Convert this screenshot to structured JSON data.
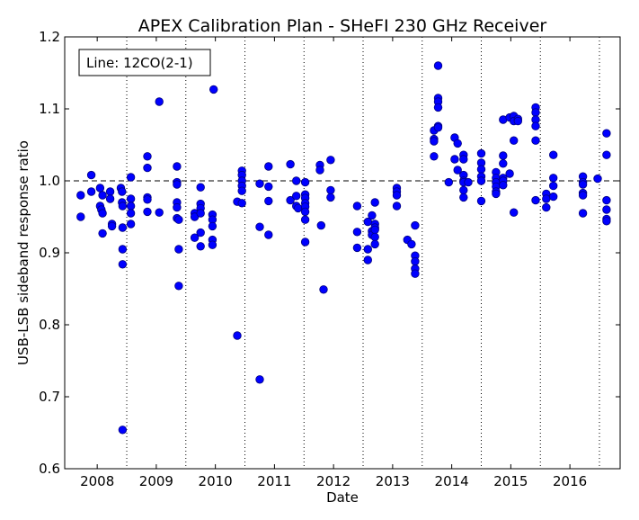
{
  "chart_data": {
    "type": "scatter",
    "title": "APEX Calibration Plan - SHeFI 230 GHz Receiver",
    "xlabel": "Date",
    "ylabel": "USB-LSB sideband response ratio",
    "legend": {
      "text": "Line: 12CO(2-1)",
      "placement": "top-left"
    },
    "xlim": [
      2007.45,
      2016.85
    ],
    "ylim": [
      0.6,
      1.2
    ],
    "x_ticks": [
      2008,
      2009,
      2010,
      2011,
      2012,
      2013,
      2014,
      2015,
      2016
    ],
    "x_tick_labels": [
      "2008",
      "2009",
      "2010",
      "2011",
      "2012",
      "2013",
      "2014",
      "2015",
      "2016"
    ],
    "y_ticks": [
      0.6,
      0.7,
      0.8,
      0.9,
      1.0,
      1.1,
      1.2
    ],
    "y_tick_labels": [
      "0.6",
      "0.7",
      "0.8",
      "0.9",
      "1.0",
      "1.1",
      "1.2"
    ],
    "reference_line": 1.0,
    "vertical_gridlines": [
      2008.5,
      2009.5,
      2010.5,
      2011.5,
      2012.5,
      2013.5,
      2014.5,
      2015.5,
      2016.5
    ],
    "marker_color": "#0000ff",
    "marker_edge_color": "#000080",
    "points": [
      [
        2007.72,
        0.98
      ],
      [
        2007.72,
        0.95
      ],
      [
        2007.9,
        1.008
      ],
      [
        2007.9,
        0.985
      ],
      [
        2008.05,
        0.99
      ],
      [
        2008.05,
        0.965
      ],
      [
        2008.07,
        0.96
      ],
      [
        2008.09,
        0.955
      ],
      [
        2008.09,
        0.927
      ],
      [
        2008.09,
        0.98
      ],
      [
        2008.22,
        0.985
      ],
      [
        2008.22,
        0.975
      ],
      [
        2008.25,
        0.94
      ],
      [
        2008.25,
        0.937
      ],
      [
        2008.4,
        0.99
      ],
      [
        2008.42,
        0.985
      ],
      [
        2008.42,
        0.97
      ],
      [
        2008.43,
        0.965
      ],
      [
        2008.43,
        0.935
      ],
      [
        2008.43,
        0.905
      ],
      [
        2008.43,
        0.884
      ],
      [
        2008.43,
        0.654
      ],
      [
        2008.57,
        1.005
      ],
      [
        2008.57,
        0.975
      ],
      [
        2008.57,
        0.965
      ],
      [
        2008.57,
        0.955
      ],
      [
        2008.57,
        0.94
      ],
      [
        2008.85,
        1.034
      ],
      [
        2008.85,
        1.018
      ],
      [
        2008.85,
        0.977
      ],
      [
        2008.85,
        0.974
      ],
      [
        2008.85,
        0.957
      ],
      [
        2009.05,
        1.11
      ],
      [
        2009.05,
        0.956
      ],
      [
        2009.35,
        1.02
      ],
      [
        2009.35,
        0.998
      ],
      [
        2009.35,
        0.995
      ],
      [
        2009.35,
        0.97
      ],
      [
        2009.35,
        0.963
      ],
      [
        2009.35,
        0.948
      ],
      [
        2009.38,
        0.946
      ],
      [
        2009.38,
        0.905
      ],
      [
        2009.38,
        0.854
      ],
      [
        2009.65,
        0.955
      ],
      [
        2009.65,
        0.95
      ],
      [
        2009.65,
        0.921
      ],
      [
        2009.75,
        0.991
      ],
      [
        2009.75,
        0.968
      ],
      [
        2009.75,
        0.962
      ],
      [
        2009.75,
        0.955
      ],
      [
        2009.75,
        0.928
      ],
      [
        2009.75,
        0.909
      ],
      [
        2009.97,
        1.127
      ],
      [
        2009.95,
        0.953
      ],
      [
        2009.95,
        0.946
      ],
      [
        2009.95,
        0.937
      ],
      [
        2009.95,
        0.918
      ],
      [
        2009.95,
        0.911
      ],
      [
        2010.37,
        0.971
      ],
      [
        2010.37,
        0.785
      ],
      [
        2010.45,
        1.014
      ],
      [
        2010.45,
        1.008
      ],
      [
        2010.45,
        1.0
      ],
      [
        2010.45,
        0.993
      ],
      [
        2010.45,
        0.986
      ],
      [
        2010.45,
        0.969
      ],
      [
        2010.75,
        0.996
      ],
      [
        2010.75,
        0.936
      ],
      [
        2010.75,
        0.724
      ],
      [
        2010.9,
        1.02
      ],
      [
        2010.9,
        0.992
      ],
      [
        2010.9,
        0.972
      ],
      [
        2010.9,
        0.925
      ],
      [
        2011.27,
        1.023
      ],
      [
        2011.27,
        0.973
      ],
      [
        2011.37,
        1.0
      ],
      [
        2011.37,
        0.979
      ],
      [
        2011.37,
        0.965
      ],
      [
        2011.4,
        0.962
      ],
      [
        2011.52,
        0.998
      ],
      [
        2011.52,
        0.981
      ],
      [
        2011.52,
        0.976
      ],
      [
        2011.52,
        0.969
      ],
      [
        2011.52,
        0.964
      ],
      [
        2011.52,
        0.957
      ],
      [
        2011.52,
        0.946
      ],
      [
        2011.52,
        0.915
      ],
      [
        2011.77,
        1.022
      ],
      [
        2011.77,
        1.015
      ],
      [
        2011.79,
        0.938
      ],
      [
        2011.83,
        0.849
      ],
      [
        2011.95,
        1.029
      ],
      [
        2011.95,
        0.987
      ],
      [
        2011.95,
        0.977
      ],
      [
        2012.4,
        0.965
      ],
      [
        2012.4,
        0.929
      ],
      [
        2012.4,
        0.907
      ],
      [
        2012.58,
        0.943
      ],
      [
        2012.58,
        0.905
      ],
      [
        2012.58,
        0.89
      ],
      [
        2012.65,
        0.952
      ],
      [
        2012.65,
        0.93
      ],
      [
        2012.65,
        0.925
      ],
      [
        2012.7,
        0.97
      ],
      [
        2012.7,
        0.94
      ],
      [
        2012.7,
        0.935
      ],
      [
        2012.7,
        0.932
      ],
      [
        2012.7,
        0.922
      ],
      [
        2012.7,
        0.912
      ],
      [
        2013.07,
        0.99
      ],
      [
        2013.07,
        0.985
      ],
      [
        2013.07,
        0.98
      ],
      [
        2013.07,
        0.965
      ],
      [
        2013.25,
        0.918
      ],
      [
        2013.32,
        0.912
      ],
      [
        2013.38,
        0.938
      ],
      [
        2013.38,
        0.896
      ],
      [
        2013.38,
        0.888
      ],
      [
        2013.38,
        0.878
      ],
      [
        2013.38,
        0.871
      ],
      [
        2013.7,
        1.07
      ],
      [
        2013.7,
        1.058
      ],
      [
        2013.7,
        1.055
      ],
      [
        2013.7,
        1.034
      ],
      [
        2013.77,
        1.16
      ],
      [
        2013.77,
        1.115
      ],
      [
        2013.77,
        1.11
      ],
      [
        2013.77,
        1.102
      ],
      [
        2013.77,
        1.076
      ],
      [
        2013.77,
        1.074
      ],
      [
        2013.95,
        0.998
      ],
      [
        2014.05,
        1.06
      ],
      [
        2014.05,
        1.03
      ],
      [
        2014.1,
        1.052
      ],
      [
        2014.1,
        1.015
      ],
      [
        2014.2,
        1.036
      ],
      [
        2014.2,
        1.03
      ],
      [
        2014.2,
        1.008
      ],
      [
        2014.2,
        1.0
      ],
      [
        2014.2,
        0.998
      ],
      [
        2014.2,
        0.987
      ],
      [
        2014.2,
        0.977
      ],
      [
        2014.28,
        0.998
      ],
      [
        2014.5,
        1.038
      ],
      [
        2014.5,
        1.025
      ],
      [
        2014.5,
        1.016
      ],
      [
        2014.5,
        1.006
      ],
      [
        2014.5,
        1.0
      ],
      [
        2014.5,
        0.972
      ],
      [
        2014.75,
        1.012
      ],
      [
        2014.75,
        1.004
      ],
      [
        2014.75,
        0.998
      ],
      [
        2014.75,
        0.992
      ],
      [
        2014.75,
        0.985
      ],
      [
        2014.75,
        0.982
      ],
      [
        2014.87,
        1.085
      ],
      [
        2014.87,
        1.035
      ],
      [
        2014.87,
        1.024
      ],
      [
        2014.87,
        1.004
      ],
      [
        2014.87,
        1.0
      ],
      [
        2014.87,
        0.994
      ],
      [
        2014.98,
        1.088
      ],
      [
        2014.98,
        1.01
      ],
      [
        2015.05,
        1.09
      ],
      [
        2015.05,
        1.083
      ],
      [
        2015.05,
        1.056
      ],
      [
        2015.05,
        0.956
      ],
      [
        2015.12,
        1.086
      ],
      [
        2015.12,
        1.083
      ],
      [
        2015.42,
        1.102
      ],
      [
        2015.42,
        1.095
      ],
      [
        2015.42,
        1.085
      ],
      [
        2015.42,
        1.076
      ],
      [
        2015.42,
        1.056
      ],
      [
        2015.42,
        0.973
      ],
      [
        2015.6,
        0.982
      ],
      [
        2015.6,
        0.975
      ],
      [
        2015.6,
        0.963
      ],
      [
        2015.72,
        1.036
      ],
      [
        2015.72,
        1.004
      ],
      [
        2015.72,
        0.993
      ],
      [
        2015.72,
        0.978
      ],
      [
        2016.22,
        1.006
      ],
      [
        2016.22,
        0.998
      ],
      [
        2016.22,
        0.995
      ],
      [
        2016.22,
        0.983
      ],
      [
        2016.22,
        0.98
      ],
      [
        2016.22,
        0.955
      ],
      [
        2016.47,
        1.003
      ],
      [
        2016.62,
        1.066
      ],
      [
        2016.62,
        1.036
      ],
      [
        2016.62,
        0.973
      ],
      [
        2016.62,
        0.96
      ],
      [
        2016.62,
        0.947
      ],
      [
        2016.62,
        0.944
      ]
    ]
  }
}
